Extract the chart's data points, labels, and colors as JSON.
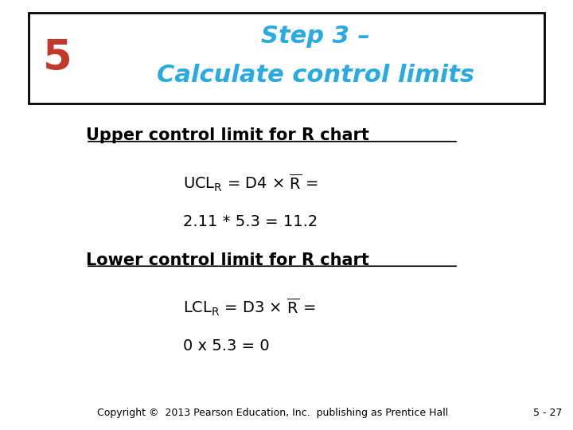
{
  "title_line1": "Step 3 –",
  "title_line2": "Calculate control limits",
  "step_number": "5",
  "title_color": "#29ABE2",
  "step_color": "#C0392B",
  "bg_color": "#FFFFFF",
  "border_color": "#000000",
  "upper_heading": "Upper control limit for R chart",
  "upper_eq2": "2.11 * 5.3 = 11.2",
  "lower_heading": "Lower control limit for R chart",
  "lower_eq2": "0 x 5.3 = 0",
  "footer_left": "Copyright ©  2013 Pearson Education, Inc.  publishing as Prentice Hall",
  "footer_right": "5 - 27",
  "body_text_color": "#000000",
  "heading_fontsize": 15,
  "eq_fontsize": 14,
  "footer_fontsize": 9
}
